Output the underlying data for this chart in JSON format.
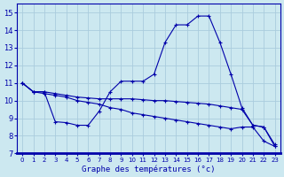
{
  "title": "Graphe des températures (°c)",
  "bg_color": "#cce8f0",
  "grid_color": "#aaccdd",
  "line_color": "#0000aa",
  "xlim": [
    -0.5,
    23.5
  ],
  "ylim": [
    7,
    15.5
  ],
  "yticks": [
    7,
    8,
    9,
    10,
    11,
    12,
    13,
    14,
    15
  ],
  "xticks": [
    0,
    1,
    2,
    3,
    4,
    5,
    6,
    7,
    8,
    9,
    10,
    11,
    12,
    13,
    14,
    15,
    16,
    17,
    18,
    19,
    20,
    21,
    22,
    23
  ],
  "series1_x": [
    0,
    1,
    2,
    3,
    4,
    5,
    6,
    7,
    8,
    9,
    10,
    11,
    12,
    13,
    14,
    15,
    16,
    17,
    18,
    19,
    20,
    21,
    22,
    23
  ],
  "series1_y": [
    11.0,
    10.5,
    10.5,
    8.8,
    8.75,
    8.6,
    8.6,
    9.4,
    10.5,
    11.1,
    11.1,
    11.1,
    11.5,
    13.3,
    14.3,
    14.3,
    14.8,
    14.8,
    13.3,
    11.5,
    9.6,
    8.6,
    8.5,
    7.4
  ],
  "series2_x": [
    0,
    1,
    2,
    3,
    4,
    5,
    6,
    7,
    8,
    9,
    10,
    11,
    12,
    13,
    14,
    15,
    16,
    17,
    18,
    19,
    20,
    21,
    22,
    23
  ],
  "series2_y": [
    11.0,
    10.5,
    10.5,
    10.4,
    10.3,
    10.2,
    10.15,
    10.1,
    10.1,
    10.1,
    10.1,
    10.05,
    10.0,
    10.0,
    9.95,
    9.9,
    9.85,
    9.8,
    9.7,
    9.6,
    9.5,
    8.6,
    8.5,
    7.5
  ],
  "series3_x": [
    0,
    1,
    2,
    3,
    4,
    5,
    6,
    7,
    8,
    9,
    10,
    11,
    12,
    13,
    14,
    15,
    16,
    17,
    18,
    19,
    20,
    21,
    22,
    23
  ],
  "series3_y": [
    11.0,
    10.5,
    10.4,
    10.3,
    10.2,
    10.0,
    9.9,
    9.8,
    9.6,
    9.5,
    9.3,
    9.2,
    9.1,
    9.0,
    8.9,
    8.8,
    8.7,
    8.6,
    8.5,
    8.4,
    8.5,
    8.5,
    7.7,
    7.4
  ]
}
